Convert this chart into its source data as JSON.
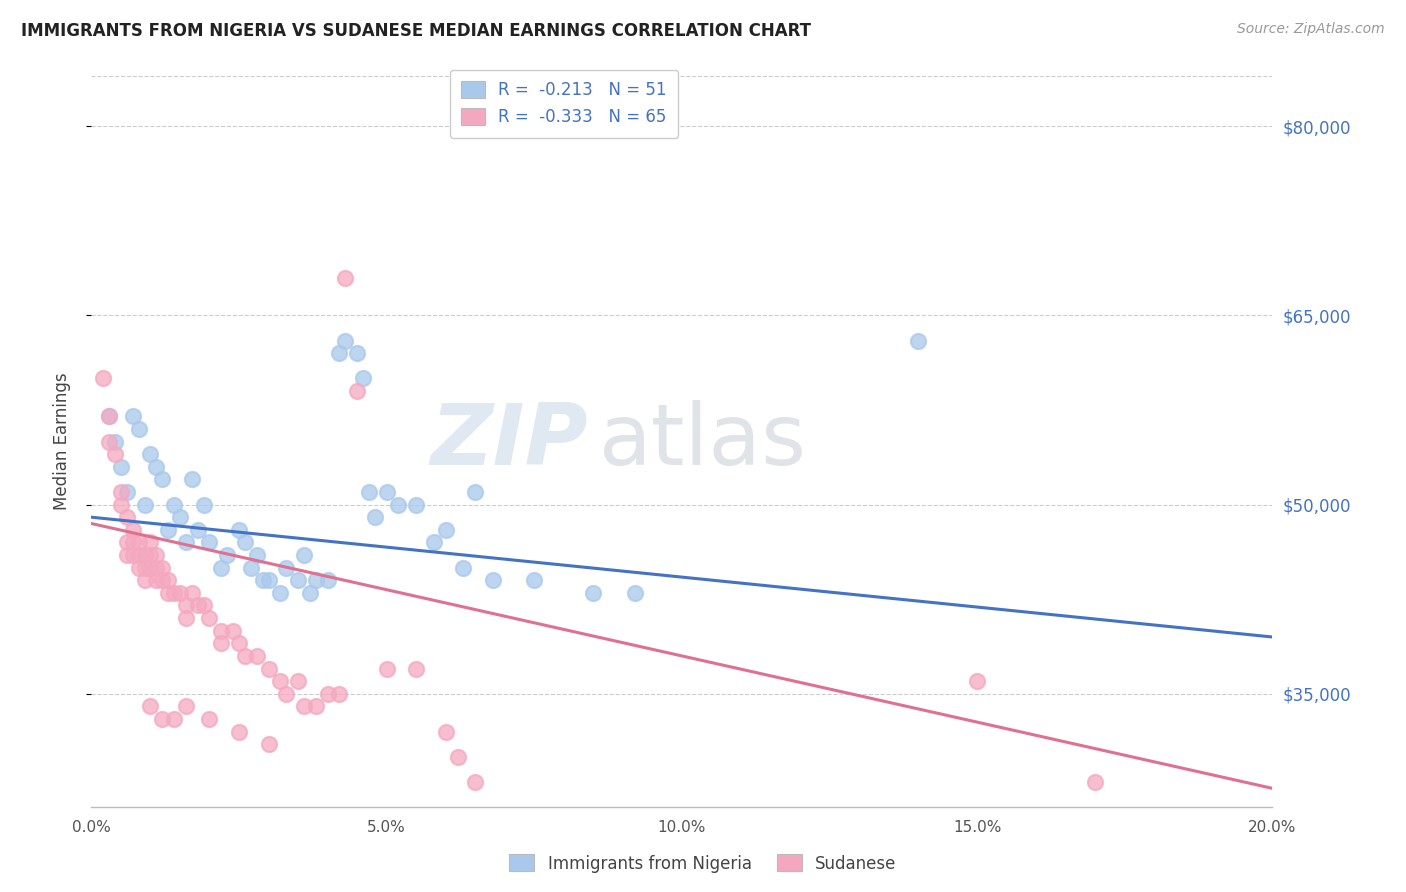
{
  "title": "IMMIGRANTS FROM NIGERIA VS SUDANESE MEDIAN EARNINGS CORRELATION CHART",
  "source": "Source: ZipAtlas.com",
  "ylabel": "Median Earnings",
  "y_ticks": [
    35000,
    50000,
    65000,
    80000
  ],
  "y_tick_labels": [
    "$35,000",
    "$50,000",
    "$65,000",
    "$80,000"
  ],
  "x_range": [
    0.0,
    0.2
  ],
  "y_range": [
    26000,
    84000
  ],
  "watermark_zip": "ZIP",
  "watermark_atlas": "atlas",
  "nigeria_R": -0.213,
  "nigeria_N": 51,
  "sudanese_R": -0.333,
  "sudanese_N": 65,
  "nigeria_color": "#A8C8EC",
  "sudanese_color": "#F4A8C0",
  "nigeria_line_color": "#4472C4",
  "sudanese_line_color": "#E07090",
  "legend_nigeria_label": "Immigrants from Nigeria",
  "legend_sudanese_label": "Sudanese",
  "nigeria_line": {
    "x0": 0.0,
    "y0": 49000,
    "x1": 0.2,
    "y1": 39500
  },
  "sudanese_line": {
    "x0": 0.0,
    "y0": 48500,
    "x1": 0.2,
    "y1": 27500
  },
  "nigeria_scatter": [
    [
      0.003,
      57000
    ],
    [
      0.004,
      55000
    ],
    [
      0.005,
      53000
    ],
    [
      0.006,
      51000
    ],
    [
      0.007,
      57000
    ],
    [
      0.008,
      56000
    ],
    [
      0.009,
      50000
    ],
    [
      0.01,
      54000
    ],
    [
      0.011,
      53000
    ],
    [
      0.012,
      52000
    ],
    [
      0.013,
      48000
    ],
    [
      0.014,
      50000
    ],
    [
      0.015,
      49000
    ],
    [
      0.016,
      47000
    ],
    [
      0.017,
      52000
    ],
    [
      0.018,
      48000
    ],
    [
      0.019,
      50000
    ],
    [
      0.02,
      47000
    ],
    [
      0.022,
      45000
    ],
    [
      0.023,
      46000
    ],
    [
      0.025,
      48000
    ],
    [
      0.026,
      47000
    ],
    [
      0.027,
      45000
    ],
    [
      0.028,
      46000
    ],
    [
      0.029,
      44000
    ],
    [
      0.03,
      44000
    ],
    [
      0.032,
      43000
    ],
    [
      0.033,
      45000
    ],
    [
      0.035,
      44000
    ],
    [
      0.036,
      46000
    ],
    [
      0.037,
      43000
    ],
    [
      0.038,
      44000
    ],
    [
      0.04,
      44000
    ],
    [
      0.042,
      62000
    ],
    [
      0.043,
      63000
    ],
    [
      0.045,
      62000
    ],
    [
      0.046,
      60000
    ],
    [
      0.047,
      51000
    ],
    [
      0.048,
      49000
    ],
    [
      0.05,
      51000
    ],
    [
      0.052,
      50000
    ],
    [
      0.055,
      50000
    ],
    [
      0.058,
      47000
    ],
    [
      0.06,
      48000
    ],
    [
      0.063,
      45000
    ],
    [
      0.065,
      51000
    ],
    [
      0.068,
      44000
    ],
    [
      0.075,
      44000
    ],
    [
      0.085,
      43000
    ],
    [
      0.092,
      43000
    ],
    [
      0.14,
      63000
    ]
  ],
  "sudanese_scatter": [
    [
      0.002,
      60000
    ],
    [
      0.003,
      57000
    ],
    [
      0.003,
      55000
    ],
    [
      0.004,
      54000
    ],
    [
      0.005,
      51000
    ],
    [
      0.005,
      50000
    ],
    [
      0.006,
      49000
    ],
    [
      0.006,
      47000
    ],
    [
      0.006,
      46000
    ],
    [
      0.007,
      48000
    ],
    [
      0.007,
      47000
    ],
    [
      0.007,
      46000
    ],
    [
      0.008,
      47000
    ],
    [
      0.008,
      46000
    ],
    [
      0.008,
      45000
    ],
    [
      0.009,
      46000
    ],
    [
      0.009,
      45000
    ],
    [
      0.009,
      44000
    ],
    [
      0.01,
      47000
    ],
    [
      0.01,
      46000
    ],
    [
      0.01,
      45000
    ],
    [
      0.011,
      46000
    ],
    [
      0.011,
      45000
    ],
    [
      0.011,
      44000
    ],
    [
      0.012,
      45000
    ],
    [
      0.012,
      44000
    ],
    [
      0.013,
      44000
    ],
    [
      0.013,
      43000
    ],
    [
      0.014,
      43000
    ],
    [
      0.015,
      43000
    ],
    [
      0.016,
      42000
    ],
    [
      0.016,
      41000
    ],
    [
      0.017,
      43000
    ],
    [
      0.018,
      42000
    ],
    [
      0.019,
      42000
    ],
    [
      0.02,
      41000
    ],
    [
      0.022,
      40000
    ],
    [
      0.022,
      39000
    ],
    [
      0.024,
      40000
    ],
    [
      0.025,
      39000
    ],
    [
      0.026,
      38000
    ],
    [
      0.028,
      38000
    ],
    [
      0.03,
      37000
    ],
    [
      0.032,
      36000
    ],
    [
      0.033,
      35000
    ],
    [
      0.035,
      36000
    ],
    [
      0.036,
      34000
    ],
    [
      0.038,
      34000
    ],
    [
      0.04,
      35000
    ],
    [
      0.042,
      35000
    ],
    [
      0.043,
      68000
    ],
    [
      0.045,
      59000
    ],
    [
      0.05,
      37000
    ],
    [
      0.055,
      37000
    ],
    [
      0.06,
      32000
    ],
    [
      0.062,
      30000
    ],
    [
      0.065,
      28000
    ],
    [
      0.01,
      34000
    ],
    [
      0.012,
      33000
    ],
    [
      0.014,
      33000
    ],
    [
      0.016,
      34000
    ],
    [
      0.02,
      33000
    ],
    [
      0.025,
      32000
    ],
    [
      0.03,
      31000
    ],
    [
      0.15,
      36000
    ],
    [
      0.17,
      28000
    ]
  ]
}
